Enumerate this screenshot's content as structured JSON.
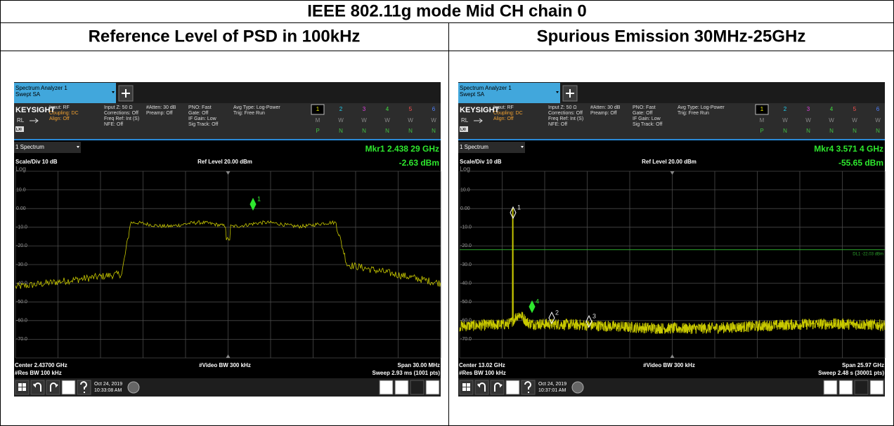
{
  "header": {
    "title": "IEEE 802.11g mode Mid CH chain 0",
    "columns": [
      "Reference Level of PSD in 100kHz",
      "Spurious Emission 30MHz-25GHz"
    ]
  },
  "analyzer_common": {
    "tab_title": "Spectrum Analyzer 1",
    "tab_subtitle": "Swept SA",
    "brand": "KEYSIGHT",
    "input": "Input: RF",
    "coupling": "Coupling: DC",
    "align": "Align: Off",
    "rl": "RL",
    "lxi": "LXI",
    "input_z": "Input Z: 50 Ω",
    "corrections": "Corrections: Off",
    "freq_ref": "Freq Ref: Int (S)",
    "nfe": "NFE: Off",
    "atten": "#Atten: 30 dB",
    "preamp": "Preamp: Off",
    "pno": "PNO: Fast",
    "gate": "Gate: Off",
    "if_gain": "IF Gain: Low",
    "sig_track": "Sig Track: Off",
    "avg_type": "Avg Type: Log-Power",
    "trig": "Trig: Free Run",
    "traces": [
      "1",
      "2",
      "3",
      "4",
      "5",
      "6"
    ],
    "trace_modes": [
      "M",
      "W",
      "W",
      "W",
      "W",
      "W"
    ],
    "trace_detectors": [
      "P",
      "N",
      "N",
      "N",
      "N",
      "N"
    ],
    "window": "1 Spectrum",
    "scale": "Scale/Div 10 dB",
    "ref_level": "Ref Level 20.00 dBm",
    "log": "Log",
    "y_labels": [
      "10.0",
      "0.00",
      "-10.0",
      "-20.0",
      "-30.0",
      "-40.0",
      "-50.0",
      "-60.0",
      "-70.0"
    ],
    "video_bw": "#Video BW 300 kHz",
    "res_bw": "#Res BW 100 kHz",
    "date": "Oct 24, 2019"
  },
  "screens": [
    {
      "marker_freq": "Mkr1  2.438 29 GHz",
      "marker_value": "-2.63 dBm",
      "center": "Center 2.43700 GHz",
      "span": "Span 30.00 MHz",
      "sweep": "Sweep 2.93 ms (1001 pts)",
      "time": "10:33:08 AM",
      "markers": [
        "1"
      ]
    },
    {
      "marker_freq": "Mkr4  3.571 4 GHz",
      "marker_value": "-55.65 dBm",
      "center": "Center 13.02 GHz",
      "span": "Span 25.97 GHz",
      "sweep": "Sweep 2.48 s (30001 pts)",
      "time": "10:37:01 AM",
      "display_line": "DL1 -22.03 dBm",
      "markers": [
        "1",
        "2",
        "3",
        "4"
      ]
    }
  ]
}
